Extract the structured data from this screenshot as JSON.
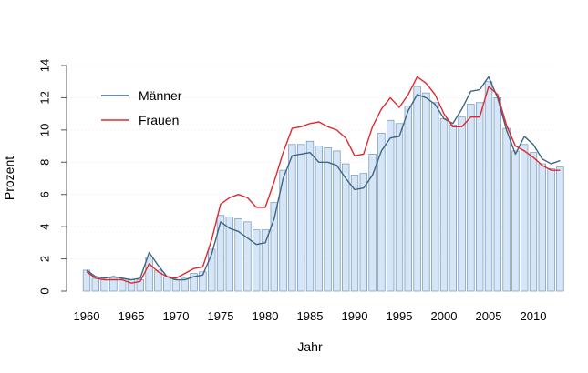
{
  "chart_data": {
    "type": "bar",
    "title": "",
    "xlabel": "Jahr",
    "ylabel": "Prozent",
    "xlim": [
      1959,
      2014
    ],
    "ylim": [
      0,
      14
    ],
    "x_ticks": [
      1960,
      1965,
      1970,
      1975,
      1980,
      1985,
      1990,
      1995,
      2000,
      2005,
      2010
    ],
    "y_ticks": [
      0,
      2,
      4,
      6,
      8,
      10,
      12,
      14
    ],
    "grid": true,
    "legend_position": "top-left",
    "colors": {
      "bar_fill": "#d6e6f7",
      "bar_stroke": "#6f95b8",
      "maenner": "#3d6585",
      "frauen": "#e0282e",
      "grid": "#e6e6e6",
      "axis": "#555555"
    },
    "years": [
      1960,
      1961,
      1962,
      1963,
      1964,
      1965,
      1966,
      1967,
      1968,
      1969,
      1970,
      1971,
      1972,
      1973,
      1974,
      1975,
      1976,
      1977,
      1978,
      1979,
      1980,
      1981,
      1982,
      1983,
      1984,
      1985,
      1986,
      1987,
      1988,
      1989,
      1990,
      1991,
      1992,
      1993,
      1994,
      1995,
      1996,
      1997,
      1998,
      1999,
      2000,
      2001,
      2002,
      2003,
      2004,
      2005,
      2006,
      2007,
      2008,
      2009,
      2010,
      2011,
      2012,
      2013
    ],
    "bar_values": [
      1.3,
      0.8,
      0.7,
      0.8,
      0.75,
      0.7,
      0.7,
      2.1,
      1.3,
      0.9,
      0.7,
      0.8,
      1.1,
      1.2,
      2.6,
      4.7,
      4.6,
      4.5,
      4.3,
      3.8,
      3.8,
      5.5,
      7.5,
      9.1,
      9.1,
      9.3,
      9.0,
      8.9,
      8.7,
      7.9,
      7.2,
      7.3,
      8.5,
      9.8,
      10.6,
      10.4,
      11.5,
      12.7,
      12.3,
      11.7,
      10.7,
      10.3,
      10.8,
      11.6,
      11.7,
      13.0,
      12.0,
      10.1,
      8.7,
      9.1,
      8.6,
      7.9,
      7.6,
      7.7
    ],
    "series": [
      {
        "name": "Männer",
        "values": [
          1.3,
          0.9,
          0.8,
          0.9,
          0.8,
          0.7,
          0.8,
          2.4,
          1.6,
          0.9,
          0.7,
          0.7,
          0.9,
          1.0,
          2.3,
          4.3,
          3.9,
          3.7,
          3.3,
          2.9,
          3.0,
          4.5,
          7.0,
          8.4,
          8.5,
          8.6,
          8.0,
          8.0,
          7.8,
          7.0,
          6.3,
          6.4,
          7.2,
          8.7,
          9.5,
          9.6,
          11.2,
          12.2,
          12.0,
          11.6,
          10.7,
          10.4,
          11.3,
          12.4,
          12.5,
          13.3,
          12.0,
          10.0,
          8.5,
          9.6,
          9.1,
          8.2,
          7.9,
          8.1
        ]
      },
      {
        "name": "Frauen",
        "values": [
          1.2,
          0.8,
          0.7,
          0.7,
          0.7,
          0.5,
          0.6,
          1.7,
          1.2,
          0.9,
          0.8,
          1.1,
          1.4,
          1.5,
          3.2,
          5.4,
          5.8,
          6.0,
          5.8,
          5.2,
          5.2,
          6.8,
          8.6,
          10.1,
          10.2,
          10.4,
          10.5,
          10.2,
          10.0,
          9.5,
          8.4,
          8.5,
          10.2,
          11.3,
          12.0,
          11.4,
          12.2,
          13.3,
          12.9,
          12.2,
          11.0,
          10.2,
          10.2,
          10.8,
          10.8,
          12.7,
          12.2,
          10.3,
          9.0,
          8.7,
          8.3,
          7.8,
          7.5,
          7.5
        ]
      }
    ]
  }
}
